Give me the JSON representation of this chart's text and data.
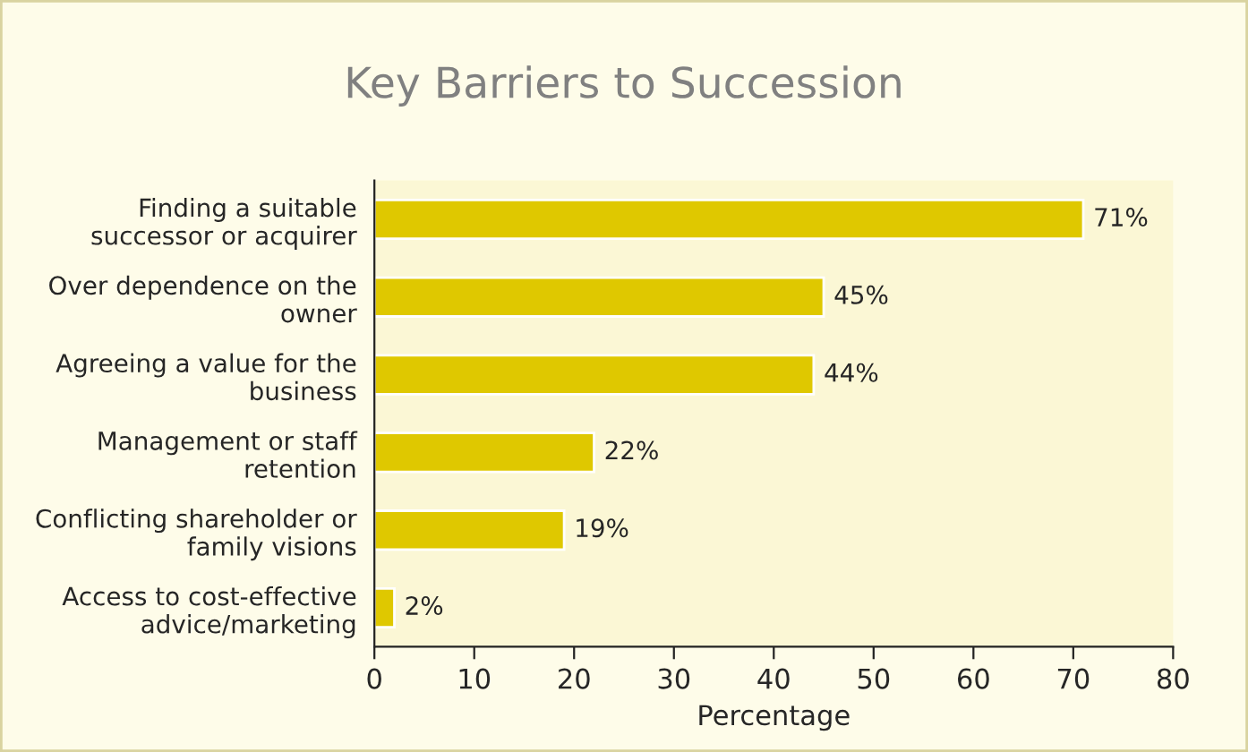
{
  "chart_data": {
    "type": "bar",
    "orientation": "horizontal",
    "title": "Key Barriers to Succession",
    "xlabel": "Percentage",
    "categories": [
      "Finding a suitable\nsuccessor or acquirer",
      "Over dependence on the\nowner",
      "Agreeing a value for the\nbusiness",
      "Management or staff\nretention",
      "Conflicting shareholder or\nfamily visions",
      "Access to cost-effective\nadvice/marketing"
    ],
    "values": [
      71,
      45,
      44,
      22,
      19,
      2
    ],
    "value_labels": [
      "71%",
      "45%",
      "44%",
      "22%",
      "19%",
      "2%"
    ],
    "color": "#dfc800",
    "xlim": [
      0,
      80
    ],
    "xticks": [
      0,
      10,
      20,
      30,
      40,
      50,
      60,
      70,
      80
    ],
    "grid": false,
    "legend": false
  }
}
